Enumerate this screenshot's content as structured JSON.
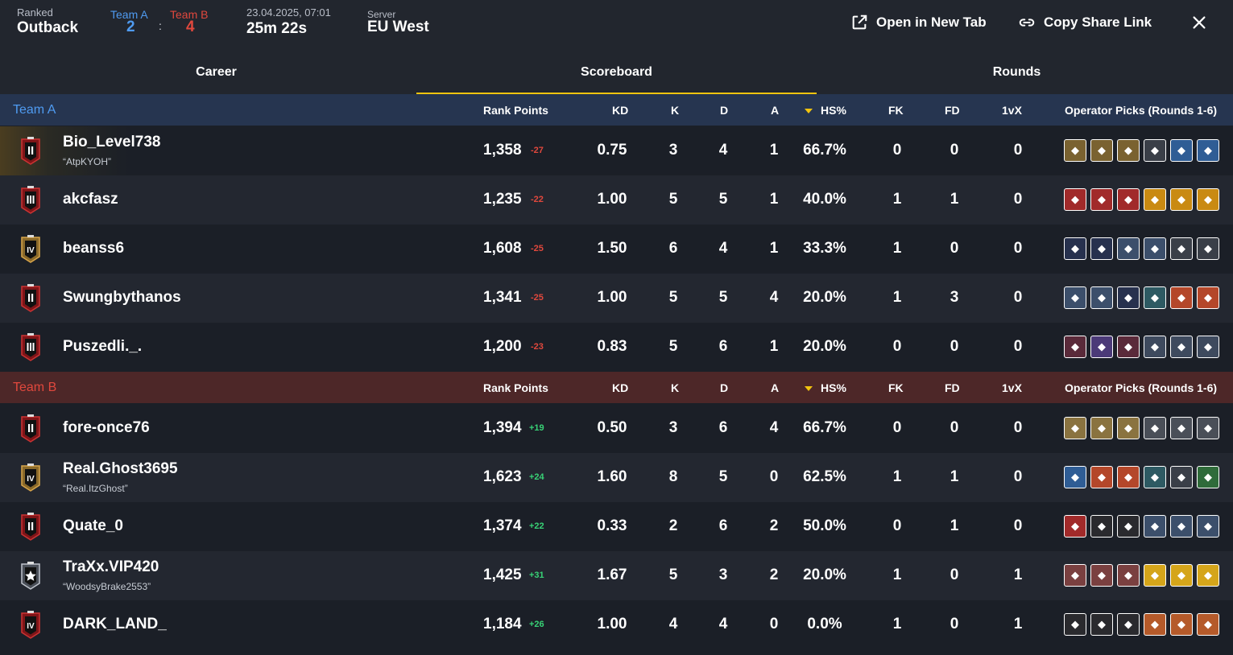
{
  "header": {
    "mode_label": "Ranked",
    "map": "Outback",
    "team_a_label": "Team A",
    "team_b_label": "Team B",
    "score_a": "2",
    "score_separator": ":",
    "score_b": "4",
    "datetime": "23.04.2025, 07:01",
    "duration": "25m 22s",
    "server_label": "Server",
    "server": "EU West",
    "open_new_tab_label": "Open in New Tab",
    "copy_link_label": "Copy Share Link"
  },
  "tabs": [
    {
      "label": "Career"
    },
    {
      "label": "Scoreboard",
      "active": true
    },
    {
      "label": "Rounds"
    }
  ],
  "columns": {
    "rank_points": "Rank Points",
    "kd": "KD",
    "k": "K",
    "d": "D",
    "a": "A",
    "hs": "HS%",
    "fk": "FK",
    "fd": "FD",
    "onevx": "1vX",
    "operators": "Operator Picks (Rounds 1-6)"
  },
  "colors": {
    "team_a": "#4f9bf1",
    "team_b": "#e1483d",
    "accent": "#f2c40f",
    "positive": "#38d276",
    "negative": "#e1483d"
  },
  "teams": [
    {
      "name": "Team A",
      "players": [
        {
          "name": "Bio_Level738",
          "alias": "“AtpKYOH”",
          "rank_icon": "rank-emerald-2",
          "rank_points": "1,358",
          "delta": "-27",
          "kd": "0.75",
          "k": "3",
          "d": "4",
          "a": "1",
          "hs": "66.7%",
          "fk": "0",
          "fd": "0",
          "onevx": "0",
          "operators": [
            {
              "icon": "operator-gold-icon",
              "color": "#7a6230"
            },
            {
              "icon": "operator-gold-icon",
              "color": "#7a6230"
            },
            {
              "icon": "operator-gold-icon",
              "color": "#7a6230"
            },
            {
              "icon": "operator-grey-icon",
              "color": "#3a3f48"
            },
            {
              "icon": "operator-blue-icon",
              "color": "#2f5d95"
            },
            {
              "icon": "operator-blue-icon",
              "color": "#2f5d95"
            }
          ]
        },
        {
          "name": "akcfasz",
          "alias": "",
          "rank_icon": "rank-ruby-3",
          "rank_points": "1,235",
          "delta": "-22",
          "kd": "1.00",
          "k": "5",
          "d": "5",
          "a": "1",
          "hs": "40.0%",
          "fk": "1",
          "fd": "1",
          "onevx": "0",
          "operators": [
            {
              "icon": "operator-red-icon",
              "color": "#a12a2a"
            },
            {
              "icon": "operator-red-icon",
              "color": "#a12a2a"
            },
            {
              "icon": "operator-red-icon",
              "color": "#a12a2a"
            },
            {
              "icon": "operator-orange-icon",
              "color": "#c98a12"
            },
            {
              "icon": "operator-orange-icon",
              "color": "#c98a12"
            },
            {
              "icon": "operator-orange-icon",
              "color": "#c98a12"
            }
          ]
        },
        {
          "name": "beanss6",
          "alias": "",
          "rank_icon": "rank-gold-4",
          "rank_points": "1,608",
          "delta": "-25",
          "kd": "1.50",
          "k": "6",
          "d": "4",
          "a": "1",
          "hs": "33.3%",
          "fk": "1",
          "fd": "0",
          "onevx": "0",
          "operators": [
            {
              "icon": "operator-navy-icon",
              "color": "#27314e"
            },
            {
              "icon": "operator-navy-icon",
              "color": "#27314e"
            },
            {
              "icon": "operator-steel-icon",
              "color": "#3c4f6b"
            },
            {
              "icon": "operator-steel-icon",
              "color": "#3c4f6b"
            },
            {
              "icon": "operator-grey-icon",
              "color": "#3a3f48"
            },
            {
              "icon": "operator-grey-icon",
              "color": "#3a3f48"
            }
          ]
        },
        {
          "name": "Swungbythanos",
          "alias": "",
          "rank_icon": "rank-ruby-2",
          "rank_points": "1,341",
          "delta": "-25",
          "kd": "1.00",
          "k": "5",
          "d": "5",
          "a": "4",
          "hs": "20.0%",
          "fk": "1",
          "fd": "3",
          "onevx": "0",
          "operators": [
            {
              "icon": "operator-steel-icon",
              "color": "#3c4f6b"
            },
            {
              "icon": "operator-steel-icon",
              "color": "#3c4f6b"
            },
            {
              "icon": "operator-navy-icon",
              "color": "#27314e"
            },
            {
              "icon": "operator-teal-icon",
              "color": "#2e5a63"
            },
            {
              "icon": "operator-orange-icon",
              "color": "#b4472a"
            },
            {
              "icon": "operator-orange-icon",
              "color": "#b4472a"
            }
          ]
        },
        {
          "name": "Puszedli._.",
          "alias": "",
          "rank_icon": "rank-ruby-3",
          "rank_points": "1,200",
          "delta": "-23",
          "kd": "0.83",
          "k": "5",
          "d": "6",
          "a": "1",
          "hs": "20.0%",
          "fk": "0",
          "fd": "0",
          "onevx": "0",
          "operators": [
            {
              "icon": "operator-maroon-icon",
              "color": "#5a2a3a"
            },
            {
              "icon": "operator-purple-icon",
              "color": "#4b3a78"
            },
            {
              "icon": "operator-maroon-icon",
              "color": "#5a2a3a"
            },
            {
              "icon": "operator-slate-icon",
              "color": "#3e4a5e"
            },
            {
              "icon": "operator-slate-icon",
              "color": "#3e4a5e"
            },
            {
              "icon": "operator-slate-icon",
              "color": "#3e4a5e"
            }
          ]
        }
      ]
    },
    {
      "name": "Team B",
      "players": [
        {
          "name": "fore-once76",
          "alias": "",
          "rank_icon": "rank-ruby-2",
          "rank_points": "1,394",
          "delta": "+19",
          "kd": "0.50",
          "k": "3",
          "d": "6",
          "a": "4",
          "hs": "66.7%",
          "fk": "0",
          "fd": "0",
          "onevx": "0",
          "operators": [
            {
              "icon": "operator-tan-icon",
              "color": "#8a7340"
            },
            {
              "icon": "operator-tan-icon",
              "color": "#8a7340"
            },
            {
              "icon": "operator-tan-icon",
              "color": "#8a7340"
            },
            {
              "icon": "operator-grey-icon",
              "color": "#4a4f58"
            },
            {
              "icon": "operator-grey-icon",
              "color": "#4a4f58"
            },
            {
              "icon": "operator-grey-icon",
              "color": "#4a4f58"
            }
          ]
        },
        {
          "name": "Real.Ghost3695",
          "alias": "“Real.ItzGhost”",
          "rank_icon": "rank-gold-4",
          "rank_points": "1,623",
          "delta": "+24",
          "kd": "1.60",
          "k": "8",
          "d": "5",
          "a": "0",
          "hs": "62.5%",
          "fk": "1",
          "fd": "1",
          "onevx": "0",
          "operators": [
            {
              "icon": "operator-blue-icon",
              "color": "#2f5d95"
            },
            {
              "icon": "operator-orange-icon",
              "color": "#b4472a"
            },
            {
              "icon": "operator-orange-icon",
              "color": "#b4472a"
            },
            {
              "icon": "operator-teal-icon",
              "color": "#2e5a63"
            },
            {
              "icon": "operator-grey-icon",
              "color": "#3a3f48"
            },
            {
              "icon": "operator-green-icon",
              "color": "#2f6b3a"
            }
          ]
        },
        {
          "name": "Quate_0",
          "alias": "",
          "rank_icon": "rank-ruby-2",
          "rank_points": "1,374",
          "delta": "+22",
          "kd": "0.33",
          "k": "2",
          "d": "6",
          "a": "2",
          "hs": "50.0%",
          "fk": "0",
          "fd": "1",
          "onevx": "0",
          "operators": [
            {
              "icon": "operator-red-icon",
              "color": "#a12a2a"
            },
            {
              "icon": "operator-dark-icon",
              "color": "#2a2a2e"
            },
            {
              "icon": "operator-dark-icon",
              "color": "#2a2a2e"
            },
            {
              "icon": "operator-steel-icon",
              "color": "#3c4f6b"
            },
            {
              "icon": "operator-steel-icon",
              "color": "#3c4f6b"
            },
            {
              "icon": "operator-steel-icon",
              "color": "#3c4f6b"
            }
          ]
        },
        {
          "name": "TraXx.VIP420",
          "alias": "“WoodsyBrake2553”",
          "rank_icon": "rank-star-1",
          "rank_points": "1,425",
          "delta": "+31",
          "kd": "1.67",
          "k": "5",
          "d": "3",
          "a": "2",
          "hs": "20.0%",
          "fk": "1",
          "fd": "0",
          "onevx": "1",
          "operators": [
            {
              "icon": "operator-rose-icon",
              "color": "#7a4040"
            },
            {
              "icon": "operator-rose-icon",
              "color": "#7a4040"
            },
            {
              "icon": "operator-rose-icon",
              "color": "#7a4040"
            },
            {
              "icon": "operator-yellow-icon",
              "color": "#d5a51a"
            },
            {
              "icon": "operator-yellow-icon",
              "color": "#d5a51a"
            },
            {
              "icon": "operator-yellow-icon",
              "color": "#d5a51a"
            }
          ]
        },
        {
          "name": "DARK_LAND_",
          "alias": "",
          "rank_icon": "rank-ruby-4",
          "rank_points": "1,184",
          "delta": "+26",
          "kd": "1.00",
          "k": "4",
          "d": "4",
          "a": "0",
          "hs": "0.0%",
          "fk": "1",
          "fd": "0",
          "onevx": "1",
          "operators": [
            {
              "icon": "operator-dark-icon",
              "color": "#2a2a2e"
            },
            {
              "icon": "operator-dark-icon",
              "color": "#2a2a2e"
            },
            {
              "icon": "operator-dark-icon",
              "color": "#2a2a2e"
            },
            {
              "icon": "operator-brick-icon",
              "color": "#b55a2a"
            },
            {
              "icon": "operator-brick-icon",
              "color": "#b55a2a"
            },
            {
              "icon": "operator-brick-icon",
              "color": "#b55a2a"
            }
          ]
        }
      ]
    }
  ]
}
